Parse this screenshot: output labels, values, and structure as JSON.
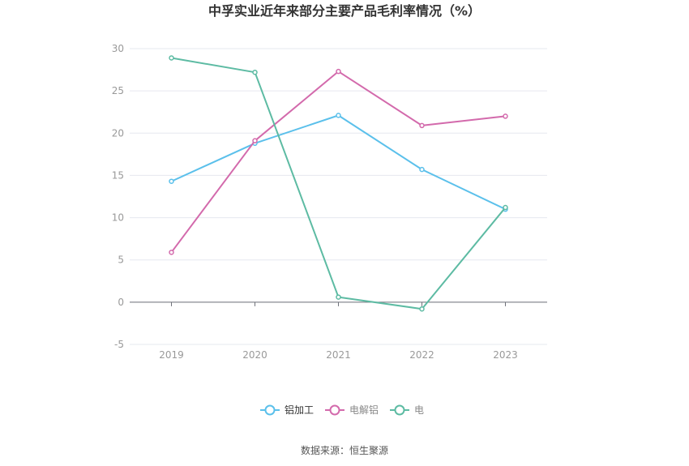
{
  "chart_data": {
    "type": "line",
    "title": "中孚实业近年来部分主要产品毛利率情况（%）",
    "categories": [
      "2019",
      "2020",
      "2021",
      "2022",
      "2023"
    ],
    "ylim": [
      -5,
      30
    ],
    "yticks": [
      -5,
      0,
      5,
      10,
      15,
      20,
      25,
      30
    ],
    "grid": true,
    "legend_position": "bottom",
    "series": [
      {
        "name": "铝加工",
        "color": "#5bc0eb",
        "values": [
          14.3,
          18.8,
          22.1,
          15.7,
          11.0
        ]
      },
      {
        "name": "电解铝",
        "color": "#d36aac",
        "values": [
          5.9,
          19.1,
          27.3,
          20.9,
          22.0
        ]
      },
      {
        "name": "电",
        "color": "#5dbba3",
        "values": [
          28.9,
          27.2,
          0.6,
          -0.8,
          11.2
        ]
      }
    ]
  },
  "source_text": "数据来源：恒生聚源"
}
